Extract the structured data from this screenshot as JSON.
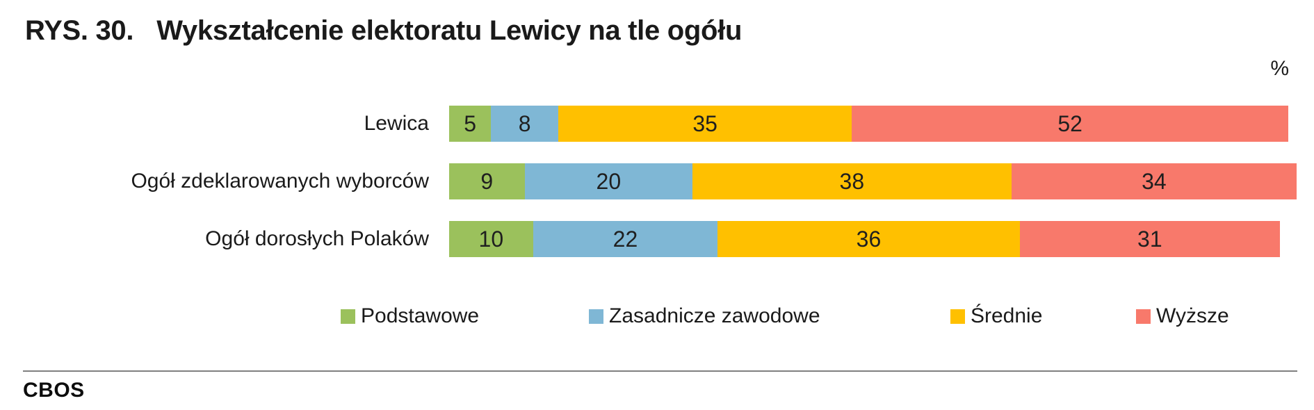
{
  "title": {
    "prefix": "RYS. 30.",
    "text": "Wykształcenie elektoratu Lewicy na tle ogółu"
  },
  "unit_label": "%",
  "footer": {
    "brand": "CBOS"
  },
  "chart_data": {
    "type": "bar",
    "orientation": "horizontal",
    "stacked": true,
    "unit": "%",
    "title": "Wykształcenie elektoratu Lewicy na tle ogółu",
    "categories": [
      "Lewica",
      "Ogół zdeklarowanych wyborców",
      "Ogół dorosłych Polaków"
    ],
    "series": [
      {
        "name": "Podstawowe",
        "color": "#9BC15C",
        "values": [
          5,
          9,
          10
        ]
      },
      {
        "name": "Zasadnicze zawodowe",
        "color": "#7FB7D5",
        "values": [
          8,
          20,
          22
        ]
      },
      {
        "name": "Średnie",
        "color": "#FFC000",
        "values": [
          35,
          38,
          36
        ]
      },
      {
        "name": "Wyższe",
        "color": "#F8796B",
        "values": [
          52,
          34,
          31
        ]
      }
    ],
    "xlim": [
      0,
      100
    ],
    "grid": false,
    "legend_position": "bottom",
    "value_labels": "inside"
  }
}
